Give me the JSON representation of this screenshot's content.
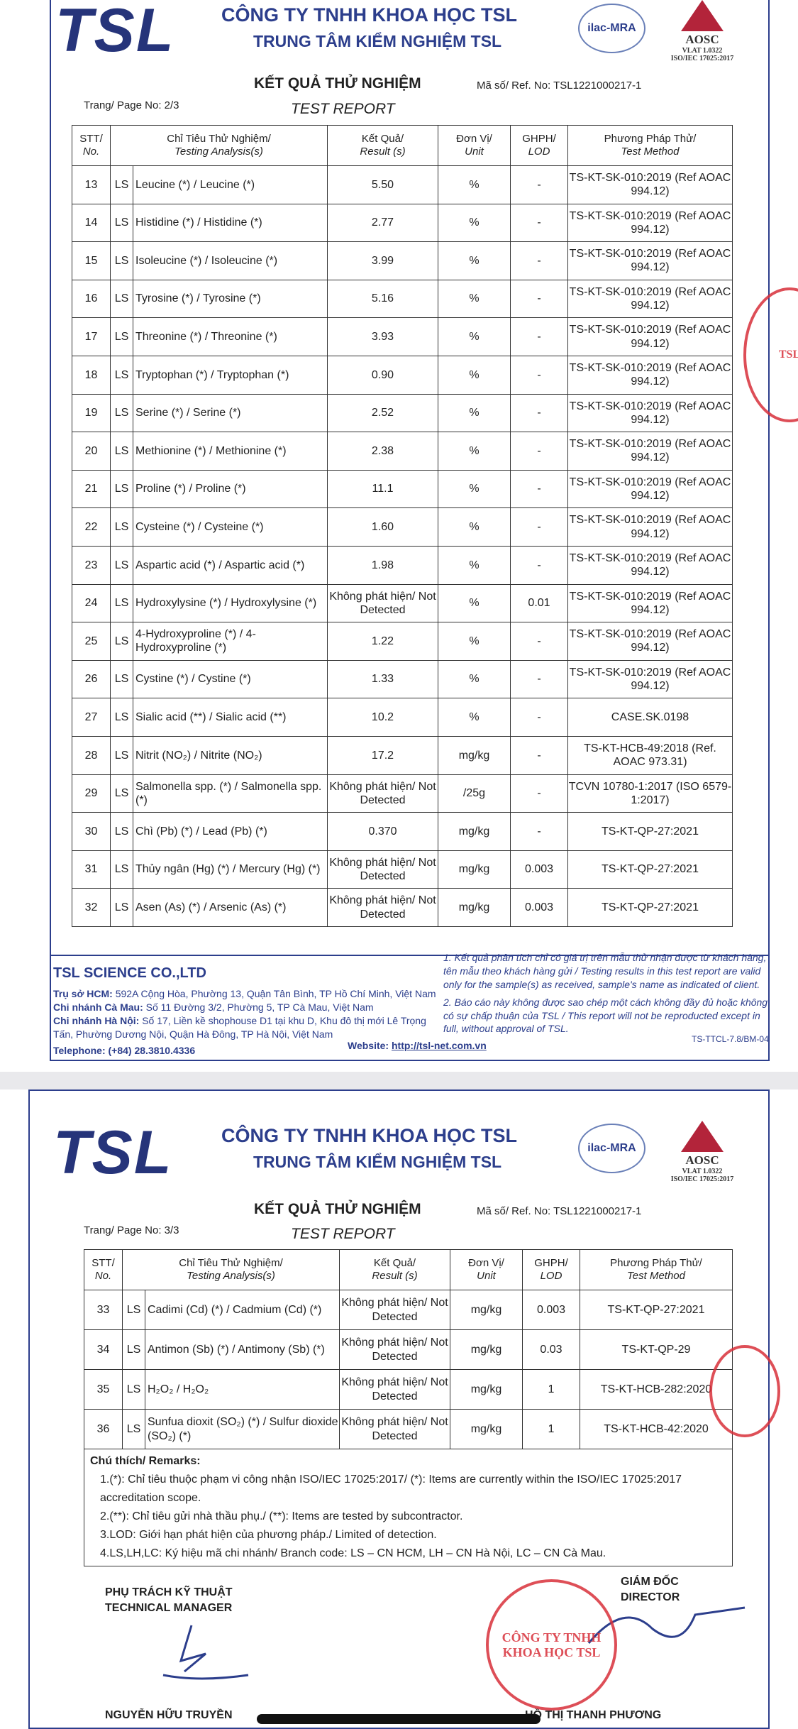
{
  "header": {
    "logo": "TSL",
    "company": "CÔNG TY TNHH KHOA HỌC TSL",
    "center": "TRUNG TÂM KIỂM NGHIỆM TSL",
    "ilac": "ilac-MRA",
    "aosc": "AOSC",
    "vlat": "VLAT 1.0322",
    "iso": "ISO/IEC 17025:2017",
    "title_vi": "KẾT QUẢ THỬ NGHIỆM",
    "title_en": "TEST REPORT",
    "ref": "Mã số/ Ref. No: TSL1221000217-1"
  },
  "columns": {
    "stt": "STT/",
    "stt_en": "No.",
    "ana": "Chỉ Tiêu Thử Nghiệm/",
    "ana_en": "Testing Analysis(s)",
    "res": "Kết Quả/",
    "res_en": "Result (s)",
    "unit": "Đơn Vị/",
    "unit_en": "Unit",
    "lod": "GHPH/",
    "lod_en": "LOD",
    "method": "Phương Pháp Thử/",
    "method_en": "Test Method"
  },
  "page1": {
    "page": "Trang/ Page No: 2/3",
    "rows": [
      [
        "13",
        "LS",
        "Leucine (*) / Leucine (*)",
        "5.50",
        "%",
        "-",
        "TS-KT-SK-010:2019 (Ref AOAC 994.12)"
      ],
      [
        "14",
        "LS",
        "Histidine (*) / Histidine (*)",
        "2.77",
        "%",
        "-",
        "TS-KT-SK-010:2019 (Ref AOAC 994.12)"
      ],
      [
        "15",
        "LS",
        "Isoleucine (*) / Isoleucine (*)",
        "3.99",
        "%",
        "-",
        "TS-KT-SK-010:2019 (Ref AOAC 994.12)"
      ],
      [
        "16",
        "LS",
        "Tyrosine (*) / Tyrosine (*)",
        "5.16",
        "%",
        "-",
        "TS-KT-SK-010:2019 (Ref AOAC 994.12)"
      ],
      [
        "17",
        "LS",
        "Threonine (*) / Threonine (*)",
        "3.93",
        "%",
        "-",
        "TS-KT-SK-010:2019 (Ref AOAC 994.12)"
      ],
      [
        "18",
        "LS",
        "Tryptophan (*) / Tryptophan (*)",
        "0.90",
        "%",
        "-",
        "TS-KT-SK-010:2019 (Ref AOAC 994.12)"
      ],
      [
        "19",
        "LS",
        "Serine (*) / Serine (*)",
        "2.52",
        "%",
        "-",
        "TS-KT-SK-010:2019 (Ref AOAC 994.12)"
      ],
      [
        "20",
        "LS",
        "Methionine (*) / Methionine (*)",
        "2.38",
        "%",
        "-",
        "TS-KT-SK-010:2019 (Ref AOAC 994.12)"
      ],
      [
        "21",
        "LS",
        "Proline (*) / Proline (*)",
        "11.1",
        "%",
        "-",
        "TS-KT-SK-010:2019 (Ref AOAC 994.12)"
      ],
      [
        "22",
        "LS",
        "Cysteine (*) / Cysteine (*)",
        "1.60",
        "%",
        "-",
        "TS-KT-SK-010:2019 (Ref AOAC 994.12)"
      ],
      [
        "23",
        "LS",
        "Aspartic acid (*) / Aspartic acid (*)",
        "1.98",
        "%",
        "-",
        "TS-KT-SK-010:2019 (Ref AOAC 994.12)"
      ],
      [
        "24",
        "LS",
        "Hydroxylysine (*) / Hydroxylysine (*)",
        "Không phát hiện/ Not Detected",
        "%",
        "0.01",
        "TS-KT-SK-010:2019 (Ref AOAC 994.12)"
      ],
      [
        "25",
        "LS",
        "4-Hydroxyproline (*) / 4-Hydroxyproline (*)",
        "1.22",
        "%",
        "-",
        "TS-KT-SK-010:2019 (Ref AOAC 994.12)"
      ],
      [
        "26",
        "LS",
        "Cystine (*) / Cystine (*)",
        "1.33",
        "%",
        "-",
        "TS-KT-SK-010:2019 (Ref AOAC 994.12)"
      ],
      [
        "27",
        "LS",
        "Sialic acid (**) / Sialic acid (**)",
        "10.2",
        "%",
        "-",
        "CASE.SK.0198"
      ],
      [
        "28",
        "LS",
        "Nitrit (NO₂) / Nitrite (NO₂)",
        "17.2",
        "mg/kg",
        "-",
        "TS-KT-HCB-49:2018 (Ref. AOAC 973.31)"
      ],
      [
        "29",
        "LS",
        "Salmonella spp. (*) / Salmonella spp. (*)",
        "Không phát hiện/ Not Detected",
        "/25g",
        "-",
        "TCVN 10780-1:2017 (ISO 6579-1:2017)"
      ],
      [
        "30",
        "LS",
        "Chì (Pb) (*) / Lead (Pb) (*)",
        "0.370",
        "mg/kg",
        "-",
        "TS-KT-QP-27:2021"
      ],
      [
        "31",
        "LS",
        "Thủy ngân (Hg) (*) / Mercury (Hg) (*)",
        "Không phát hiện/ Not Detected",
        "mg/kg",
        "0.003",
        "TS-KT-QP-27:2021"
      ],
      [
        "32",
        "LS",
        "Asen (As) (*) / Arsenic (As) (*)",
        "Không phát hiện/ Not Detected",
        "mg/kg",
        "0.003",
        "TS-KT-QP-27:2021"
      ]
    ]
  },
  "footer": {
    "company": "TSL SCIENCE CO.,LTD",
    "hcm_label": "Trụ sở HCM:",
    "hcm": " 592A Cộng Hòa, Phường 13, Quận Tân Bình, TP Hồ Chí Minh, Việt Nam",
    "cm_label": "Chi nhánh Cà Mau:",
    "cm": " Số 11 Đường 3/2, Phường 5, TP Cà Mau, Việt Nam",
    "hn_label": "Chi nhánh Hà Nội:",
    "hn": " Số 17, Liền kề shophouse D1 tại khu D, Khu đô thị mới Lê Trọng Tấn, Phường Dương Nội, Quận Hà Đông, TP Hà Nội, Việt Nam",
    "phone": "Telephone: (+84) 28.3810.4336",
    "web_label": "Website: ",
    "web": "http://tsl-net.com.vn",
    "note1": "1. Kết quả phân tích chỉ có giá trị trên mẫu thử nhận được từ khách hàng, tên mẫu theo khách hàng gửi / Testing results in this test report are valid only for the sample(s) as received, sample's name as indicated of client.",
    "note2": "2. Báo cáo này không được sao chép một cách không đầy đủ hoặc không có sự chấp thuận của TSL / This report will not be reproducted except in full, without approval of TSL.",
    "form": "TS-TTCL-7.8/BM-04"
  },
  "page2": {
    "page": "Trang/ Page No: 3/3",
    "rows": [
      [
        "33",
        "LS",
        "Cadimi (Cd) (*) / Cadmium (Cd) (*)",
        "Không phát hiện/ Not Detected",
        "mg/kg",
        "0.003",
        "TS-KT-QP-27:2021"
      ],
      [
        "34",
        "LS",
        "Antimon (Sb) (*) / Antimony (Sb) (*)",
        "Không phát hiện/ Not Detected",
        "mg/kg",
        "0.03",
        "TS-KT-QP-29"
      ],
      [
        "35",
        "LS",
        "H₂O₂ / H₂O₂",
        "Không phát hiện/ Not Detected",
        "mg/kg",
        "1",
        "TS-KT-HCB-282:2020"
      ],
      [
        "36",
        "LS",
        "Sunfua dioxit (SO₂) (*) / Sulfur dioxide (SO₂) (*)",
        "Không phát hiện/ Not Detected",
        "mg/kg",
        "1",
        "TS-KT-HCB-42:2020"
      ]
    ],
    "remarks_title": "Chú thích/ Remarks:",
    "remarks": [
      "1.(*): Chỉ tiêu thuộc phạm vi công nhận ISO/IEC 17025:2017/ (*): Items are currently within the ISO/IEC 17025:2017 accreditation scope.",
      "2.(**): Chỉ tiêu gửi nhà thầu phụ./ (**): Items are tested by subcontractor.",
      "3.LOD: Giới hạn phát hiện của phương pháp./ Limited of detection.",
      "4.LS,LH,LC: Ký hiệu mã chi nhánh/ Branch code: LS – CN HCM, LH – CN Hà Nội, LC – CN Cà Mau."
    ],
    "tech_title1": "PHỤ TRÁCH KỸ THUẬT",
    "tech_title2": "TECHNICAL MANAGER",
    "tech_name": "NGUYỄN HỮU TRUYỀN",
    "dir_title1": "GIÁM ĐỐC",
    "dir_title2": "DIRECTOR",
    "dir_name": "HỒ THỊ THANH PHƯƠNG",
    "stamp": "CÔNG TY TNHH KHOA HỌC TSL"
  }
}
